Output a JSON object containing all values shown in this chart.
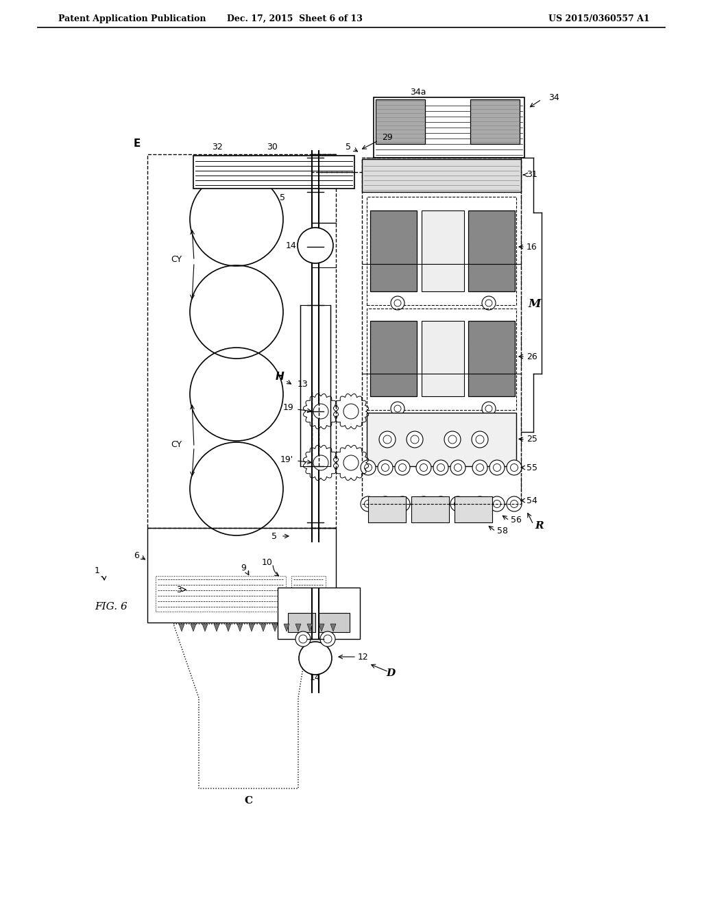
{
  "header_left": "Patent Application Publication",
  "header_mid": "Dec. 17, 2015  Sheet 6 of 13",
  "header_right": "US 2015/0360557 A1",
  "bg_color": "#ffffff",
  "lc": "#000000",
  "gray": "#aaaaaa",
  "dark_gray": "#666666",
  "hatch_gray": "#bbbbbb"
}
